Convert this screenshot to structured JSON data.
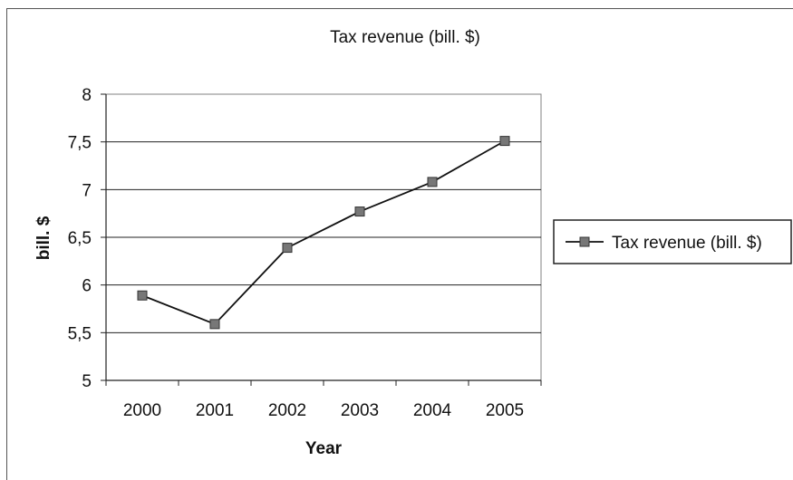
{
  "chart_data": {
    "type": "line",
    "title": "Tax revenue (bill. $)",
    "xlabel": "Year",
    "ylabel": "bill. $",
    "categories": [
      "2000",
      "2001",
      "2002",
      "2003",
      "2004",
      "2005"
    ],
    "series": [
      {
        "name": "Tax revenue (bill. $)",
        "values": [
          5.89,
          5.59,
          6.39,
          6.77,
          7.08,
          7.51
        ],
        "color": "#111111",
        "marker": "square",
        "marker_color": "#777777"
      }
    ],
    "ylim": [
      5,
      8
    ],
    "yticks": [
      5,
      5.5,
      6,
      6.5,
      7,
      7.5,
      8
    ],
    "ytick_labels": [
      "5",
      "5,5",
      "6",
      "6,5",
      "7",
      "7,5",
      "8"
    ],
    "grid": true,
    "legend_position": "right"
  }
}
